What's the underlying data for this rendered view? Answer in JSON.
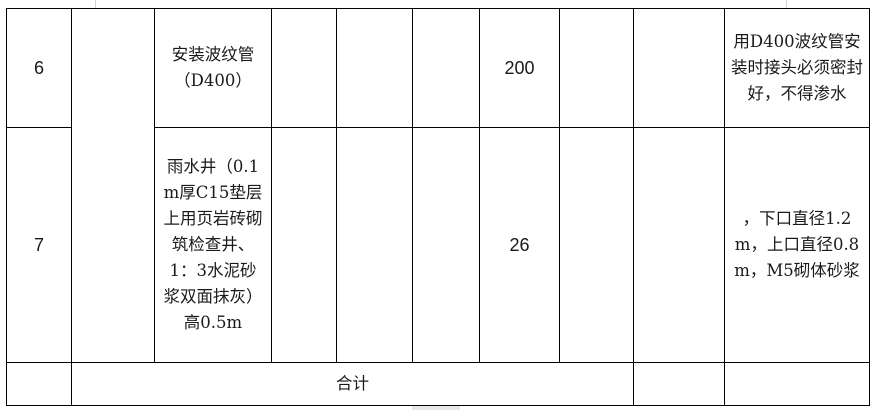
{
  "rows": [
    {
      "no": "6",
      "item": "安装波纹管（D400）",
      "quantity": "200",
      "remark": "用D400波纹管安装时接头必须密封好，不得渗水"
    },
    {
      "no": "7",
      "item": "雨水井（0.1m厚C15垫层上用页岩砖砌筑检查井、1：3水泥砂浆双面抹灰）高0.5m",
      "quantity": "26",
      "remark": "，下口直径1.2m，上口直径0.8m，M5砌体砂浆"
    }
  ],
  "total": {
    "label": "合计"
  }
}
